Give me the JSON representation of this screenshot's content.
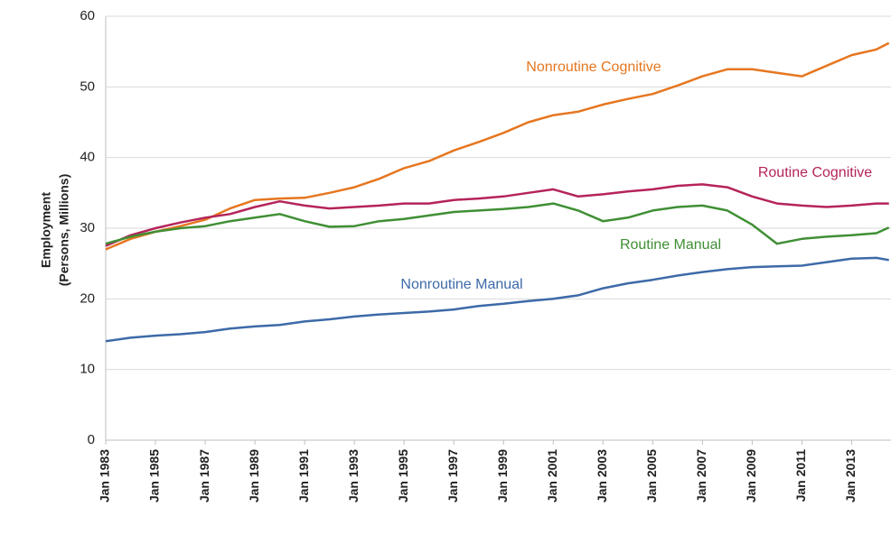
{
  "chart_data": {
    "type": "line",
    "ylabel": [
      "Employment",
      "(Persons, Millions)"
    ],
    "x": [
      "1983-01",
      "1984-01",
      "1985-01",
      "1986-01",
      "1987-01",
      "1988-01",
      "1989-01",
      "1990-01",
      "1991-01",
      "1992-01",
      "1993-01",
      "1994-01",
      "1995-01",
      "1996-01",
      "1997-01",
      "1998-01",
      "1999-01",
      "2000-01",
      "2001-01",
      "2002-01",
      "2003-01",
      "2004-01",
      "2005-01",
      "2006-01",
      "2007-01",
      "2008-01",
      "2009-01",
      "2010-01",
      "2011-01",
      "2012-01",
      "2013-01",
      "2014-01",
      "2014-07"
    ],
    "series": [
      {
        "name": "Nonroutine Cognitive",
        "color": "#e6761f",
        "values": [
          27,
          28.5,
          29.5,
          30.3,
          31.2,
          32.8,
          34,
          34.2,
          34.3,
          35,
          35.8,
          37,
          38.5,
          39.5,
          41,
          42.2,
          43.5,
          45,
          46,
          46.5,
          47.5,
          48.3,
          49,
          50.2,
          51.5,
          52.5,
          52.5,
          52,
          51.5,
          53,
          54.5,
          55.3,
          56.2
        ]
      },
      {
        "name": "Routine Cognitive",
        "color": "#b5245a",
        "values": [
          27.5,
          29,
          30,
          30.8,
          31.5,
          32,
          33,
          33.8,
          33.2,
          32.8,
          33,
          33.2,
          33.5,
          33.5,
          34,
          34.2,
          34.5,
          35,
          35.5,
          34.5,
          34.8,
          35.2,
          35.5,
          36,
          36.2,
          35.8,
          34.5,
          33.5,
          33.2,
          33,
          33.2,
          33.5,
          33.5
        ]
      },
      {
        "name": "Routine Manual",
        "color": "#3f8f34",
        "values": [
          27.8,
          28.8,
          29.5,
          30,
          30.3,
          31,
          31.5,
          32,
          31,
          30.2,
          30.3,
          31,
          31.3,
          31.8,
          32.3,
          32.5,
          32.7,
          33,
          33.5,
          32.5,
          31,
          31.5,
          32.5,
          33,
          33.2,
          32.5,
          30.5,
          27.8,
          28.5,
          28.8,
          29,
          29.3,
          30.1
        ]
      },
      {
        "name": "Nonroutine Manual",
        "color": "#3d6aa8",
        "values": [
          14,
          14.5,
          14.8,
          15,
          15.3,
          15.8,
          16.1,
          16.3,
          16.8,
          17.1,
          17.5,
          17.8,
          18,
          18.2,
          18.5,
          19,
          19.3,
          19.7,
          20,
          20.5,
          21.5,
          22.2,
          22.7,
          23.3,
          23.8,
          24.2,
          24.5,
          24.6,
          24.7,
          25.2,
          25.7,
          25.8,
          25.5
        ]
      }
    ],
    "xlim": [
      "1983-01",
      "2014-08"
    ],
    "xticks": [
      {
        "value": "1983-01",
        "label": "Jan 1983"
      },
      {
        "value": "1985-01",
        "label": "Jan 1985"
      },
      {
        "value": "1987-01",
        "label": "Jan 1987"
      },
      {
        "value": "1989-01",
        "label": "Jan 1989"
      },
      {
        "value": "1991-01",
        "label": "Jan 1991"
      },
      {
        "value": "1993-01",
        "label": "Jan 1993"
      },
      {
        "value": "1995-01",
        "label": "Jan 1995"
      },
      {
        "value": "1997-01",
        "label": "Jan 1997"
      },
      {
        "value": "1999-01",
        "label": "Jan 1999"
      },
      {
        "value": "2001-01",
        "label": "Jan 2001"
      },
      {
        "value": "2003-01",
        "label": "Jan 2003"
      },
      {
        "value": "2005-01",
        "label": "Jan 2005"
      },
      {
        "value": "2007-01",
        "label": "Jan 2007"
      },
      {
        "value": "2009-01",
        "label": "Jan 2009"
      },
      {
        "value": "2011-01",
        "label": "Jan 2011"
      },
      {
        "value": "2013-01",
        "label": "Jan 2013"
      }
    ],
    "ylim": [
      0,
      60
    ],
    "yticks": [
      0,
      10,
      20,
      30,
      40,
      50,
      60
    ],
    "grid": true
  }
}
